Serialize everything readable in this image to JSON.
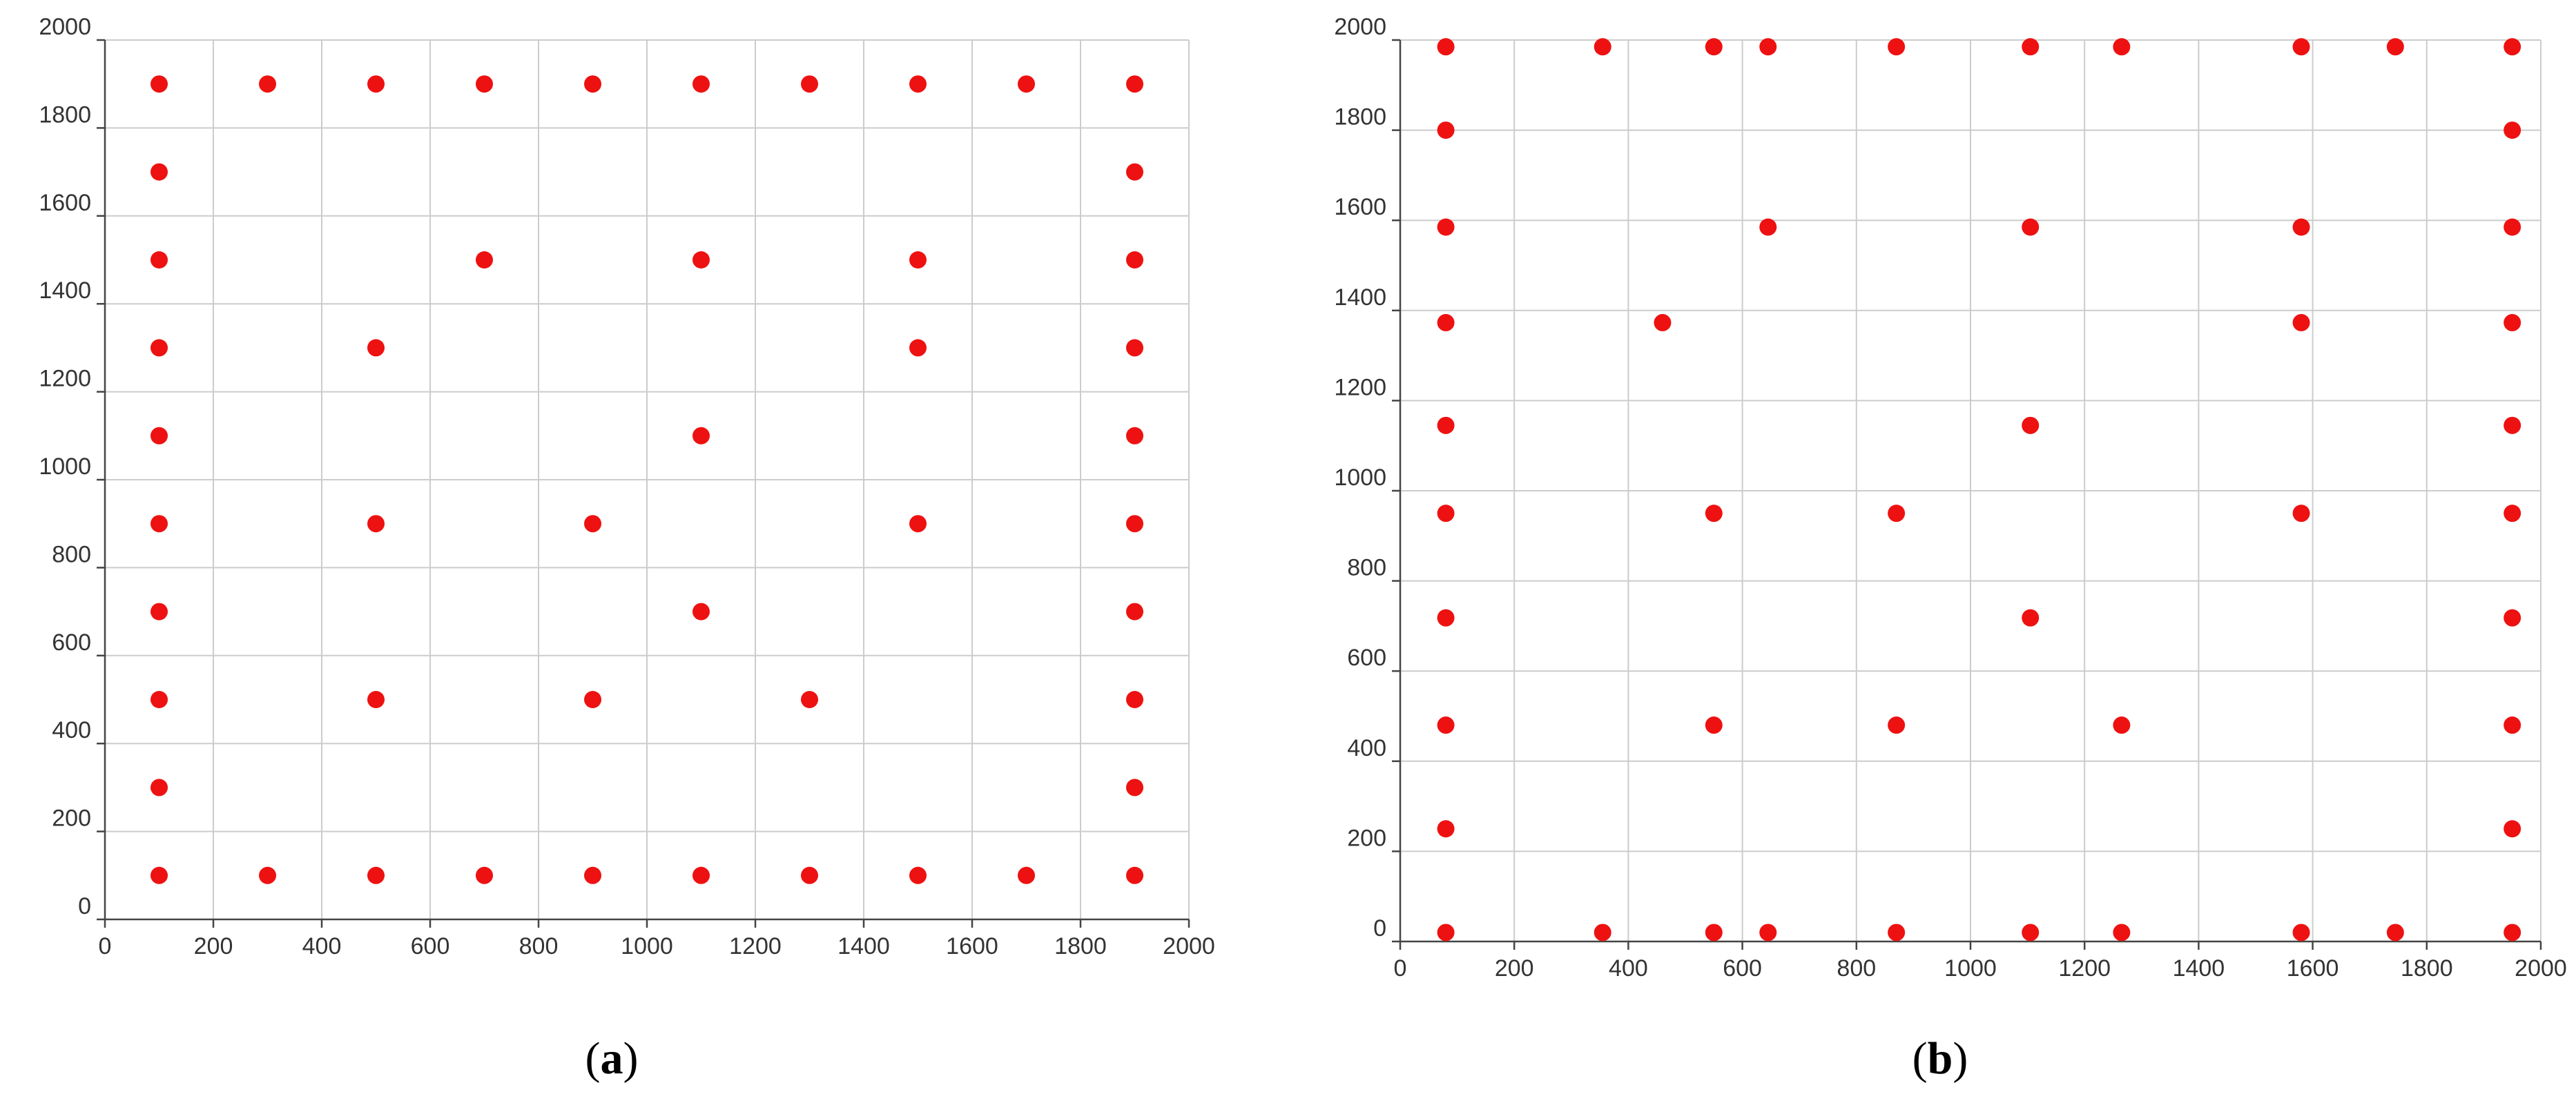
{
  "colors": {
    "point": "#ee1111",
    "grid": "#cccccc",
    "axis": "#444444",
    "text": "#333333"
  },
  "chart_data": [
    {
      "type": "scatter",
      "panel_label": "a",
      "title": "",
      "xlabel": "",
      "ylabel": "",
      "xlim": [
        0,
        2000
      ],
      "ylim": [
        0,
        2000
      ],
      "xticks": [
        0,
        200,
        400,
        600,
        800,
        1000,
        1200,
        1400,
        1600,
        1800,
        2000
      ],
      "yticks": [
        0,
        200,
        400,
        600,
        800,
        1000,
        1200,
        1400,
        1600,
        1800,
        2000
      ],
      "grid": true,
      "series": [
        {
          "points": [
            [
              100,
              1900
            ],
            [
              300,
              1900
            ],
            [
              500,
              1900
            ],
            [
              700,
              1900
            ],
            [
              900,
              1900
            ],
            [
              1100,
              1900
            ],
            [
              1300,
              1900
            ],
            [
              1500,
              1900
            ],
            [
              1700,
              1900
            ],
            [
              1900,
              1900
            ],
            [
              100,
              1700
            ],
            [
              1900,
              1700
            ],
            [
              100,
              1500
            ],
            [
              700,
              1500
            ],
            [
              1100,
              1500
            ],
            [
              1500,
              1500
            ],
            [
              1900,
              1500
            ],
            [
              100,
              1300
            ],
            [
              500,
              1300
            ],
            [
              1500,
              1300
            ],
            [
              1900,
              1300
            ],
            [
              100,
              1100
            ],
            [
              1100,
              1100
            ],
            [
              1900,
              1100
            ],
            [
              100,
              900
            ],
            [
              500,
              900
            ],
            [
              900,
              900
            ],
            [
              1500,
              900
            ],
            [
              1900,
              900
            ],
            [
              100,
              700
            ],
            [
              1100,
              700
            ],
            [
              1900,
              700
            ],
            [
              100,
              500
            ],
            [
              500,
              500
            ],
            [
              900,
              500
            ],
            [
              1300,
              500
            ],
            [
              1900,
              500
            ],
            [
              100,
              300
            ],
            [
              1900,
              300
            ],
            [
              100,
              100
            ],
            [
              300,
              100
            ],
            [
              500,
              100
            ],
            [
              700,
              100
            ],
            [
              900,
              100
            ],
            [
              1100,
              100
            ],
            [
              1300,
              100
            ],
            [
              1500,
              100
            ],
            [
              1700,
              100
            ],
            [
              1900,
              100
            ]
          ]
        }
      ]
    },
    {
      "type": "scatter",
      "panel_label": "b",
      "title": "",
      "xlabel": "",
      "ylabel": "",
      "xlim": [
        0,
        2000
      ],
      "ylim": [
        0,
        2000
      ],
      "xticks": [
        0,
        200,
        400,
        600,
        800,
        1000,
        1200,
        1400,
        1600,
        1800,
        2000
      ],
      "yticks": [
        0,
        200,
        400,
        600,
        800,
        1000,
        1200,
        1400,
        1600,
        1800,
        2000
      ],
      "grid": true,
      "series": [
        {
          "points": [
            [
              80,
              1985
            ],
            [
              355,
              1985
            ],
            [
              550,
              1985
            ],
            [
              645,
              1985
            ],
            [
              870,
              1985
            ],
            [
              1105,
              1985
            ],
            [
              1265,
              1985
            ],
            [
              1580,
              1985
            ],
            [
              1745,
              1985
            ],
            [
              1950,
              1985
            ],
            [
              80,
              1800
            ],
            [
              1950,
              1800
            ],
            [
              80,
              1585
            ],
            [
              645,
              1585
            ],
            [
              1105,
              1585
            ],
            [
              1580,
              1585
            ],
            [
              1950,
              1585
            ],
            [
              80,
              1373
            ],
            [
              460,
              1373
            ],
            [
              1580,
              1373
            ],
            [
              1950,
              1373
            ],
            [
              80,
              1145
            ],
            [
              1105,
              1145
            ],
            [
              1950,
              1145
            ],
            [
              80,
              950
            ],
            [
              550,
              950
            ],
            [
              870,
              950
            ],
            [
              1580,
              950
            ],
            [
              1950,
              950
            ],
            [
              80,
              718
            ],
            [
              1105,
              718
            ],
            [
              1950,
              718
            ],
            [
              80,
              480
            ],
            [
              550,
              480
            ],
            [
              870,
              480
            ],
            [
              1265,
              480
            ],
            [
              1950,
              480
            ],
            [
              80,
              250
            ],
            [
              1950,
              250
            ],
            [
              80,
              20
            ],
            [
              355,
              20
            ],
            [
              550,
              20
            ],
            [
              645,
              20
            ],
            [
              870,
              20
            ],
            [
              1105,
              20
            ],
            [
              1265,
              20
            ],
            [
              1580,
              20
            ],
            [
              1745,
              20
            ],
            [
              1950,
              20
            ]
          ]
        }
      ]
    }
  ]
}
